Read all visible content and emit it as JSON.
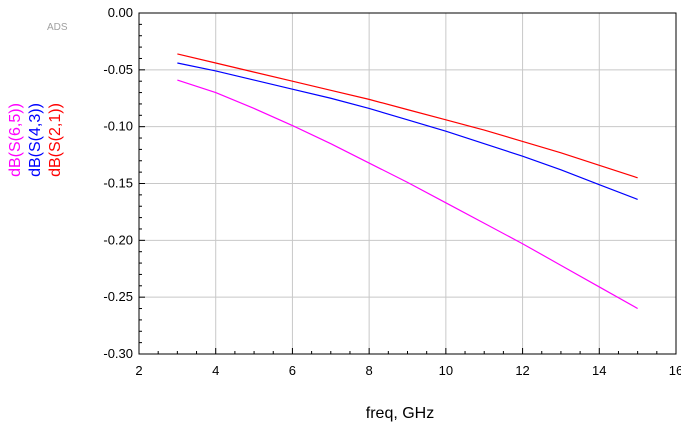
{
  "app": {
    "watermark": "ADS"
  },
  "chart_data": {
    "type": "line",
    "title": "",
    "xlabel": "freq, GHz",
    "xlim": [
      2,
      16
    ],
    "ylim": [
      -0.3,
      0.0
    ],
    "x_ticks": [
      2,
      4,
      6,
      8,
      10,
      12,
      14,
      16
    ],
    "x_tick_labels": [
      "2",
      "4",
      "6",
      "8",
      "10",
      "12",
      "14",
      "16"
    ],
    "y_ticks": [
      0.0,
      -0.05,
      -0.1,
      -0.15,
      -0.2,
      -0.25,
      -0.3
    ],
    "y_tick_labels": [
      "0.00",
      "-0.05",
      "-0.10",
      "-0.15",
      "-0.20",
      "-0.25",
      "-0.30"
    ],
    "grid": true,
    "series": [
      {
        "name": "dB(S(6,5))",
        "color": "#ff00ff",
        "x": [
          3,
          4,
          5,
          6,
          7,
          8,
          9,
          10,
          11,
          12,
          13,
          14,
          15
        ],
        "y": [
          -0.059,
          -0.07,
          -0.084,
          -0.099,
          -0.115,
          -0.132,
          -0.149,
          -0.167,
          -0.185,
          -0.203,
          -0.222,
          -0.241,
          -0.26
        ]
      },
      {
        "name": "dB(S(4,3))",
        "color": "#0000ff",
        "x": [
          3,
          4,
          5,
          6,
          7,
          8,
          9,
          10,
          11,
          12,
          13,
          14,
          15
        ],
        "y": [
          -0.044,
          -0.051,
          -0.059,
          -0.067,
          -0.075,
          -0.084,
          -0.094,
          -0.104,
          -0.115,
          -0.126,
          -0.138,
          -0.151,
          -0.164
        ]
      },
      {
        "name": "dB(S(2,1))",
        "color": "#ff0000",
        "x": [
          3,
          4,
          5,
          6,
          7,
          8,
          9,
          10,
          11,
          12,
          13,
          14,
          15
        ],
        "y": [
          -0.036,
          -0.044,
          -0.052,
          -0.06,
          -0.068,
          -0.076,
          -0.085,
          -0.094,
          -0.103,
          -0.113,
          -0.123,
          -0.134,
          -0.145
        ]
      }
    ]
  }
}
